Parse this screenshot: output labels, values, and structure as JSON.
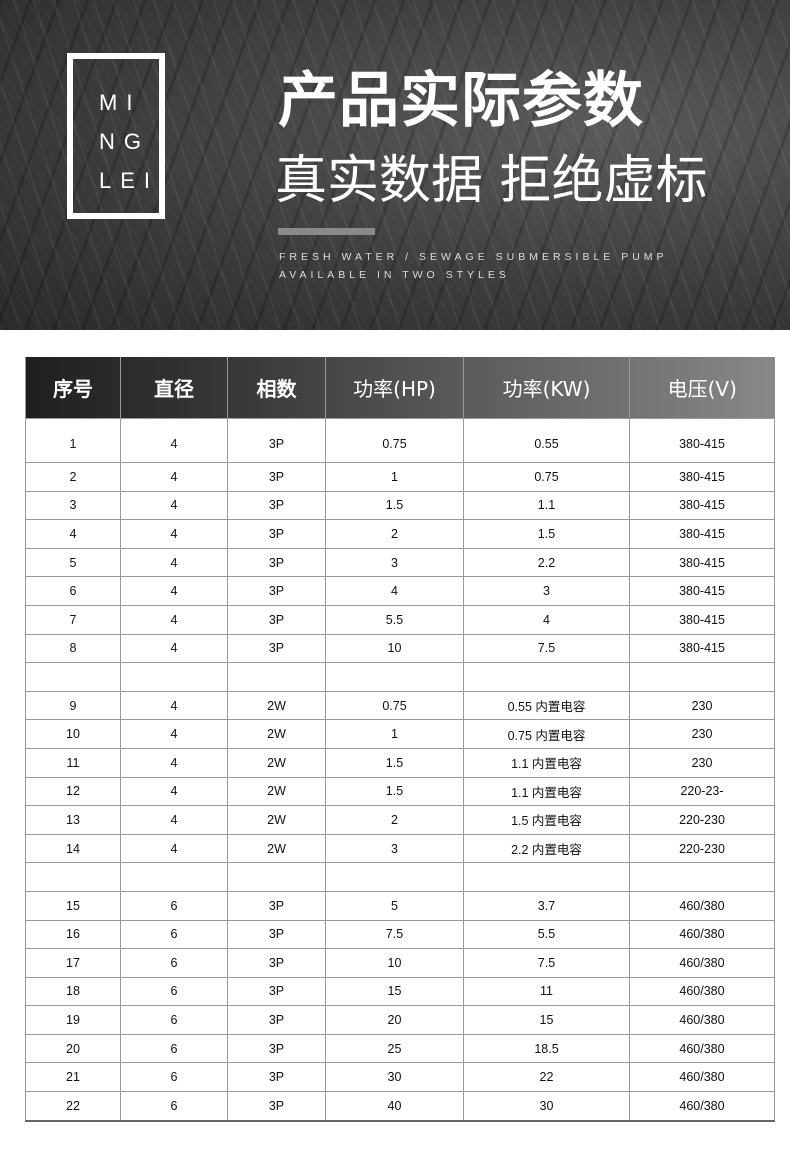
{
  "banner": {
    "logo_lines": [
      "MI",
      "NG",
      "LEI"
    ],
    "title": "产品实际参数",
    "subtitle": "真实数据 拒绝虚标",
    "tagline1": "FRESH WATER / SEWAGE SUBMERSIBLE PUMP",
    "tagline2": "AVAILABLE IN TWO STYLES"
  },
  "table": {
    "headers": [
      "序号",
      "直径",
      "相数",
      "功率(HP)",
      "功率(KW)",
      "电压(V)"
    ],
    "rows": [
      [
        "1",
        "4",
        "3P",
        "0.75",
        "0.55",
        "380-415"
      ],
      [
        "2",
        "4",
        "3P",
        "1",
        "0.75",
        "380-415"
      ],
      [
        "3",
        "4",
        "3P",
        "1.5",
        "1.1",
        "380-415"
      ],
      [
        "4",
        "4",
        "3P",
        "2",
        "1.5",
        "380-415"
      ],
      [
        "5",
        "4",
        "3P",
        "3",
        "2.2",
        "380-415"
      ],
      [
        "6",
        "4",
        "3P",
        "4",
        "3",
        "380-415"
      ],
      [
        "7",
        "4",
        "3P",
        "5.5",
        "4",
        "380-415"
      ],
      [
        "8",
        "4",
        "3P",
        "10",
        "7.5",
        "380-415"
      ],
      [
        "",
        "",
        "",
        "",
        "",
        ""
      ],
      [
        "9",
        "4",
        "2W",
        "0.75",
        "0.55 内置电容",
        "230"
      ],
      [
        "10",
        "4",
        "2W",
        "1",
        "0.75 内置电容",
        "230"
      ],
      [
        "11",
        "4",
        "2W",
        "1.5",
        "1.1 内置电容",
        "230"
      ],
      [
        "12",
        "4",
        "2W",
        "1.5",
        "1.1 内置电容",
        "220-23-"
      ],
      [
        "13",
        "4",
        "2W",
        "2",
        "1.5 内置电容",
        "220-230"
      ],
      [
        "14",
        "4",
        "2W",
        "3",
        "2.2 内置电容",
        "220-230"
      ],
      [
        "",
        "",
        "",
        "",
        "",
        ""
      ],
      [
        "15",
        "6",
        "3P",
        "5",
        "3.7",
        "460/380"
      ],
      [
        "16",
        "6",
        "3P",
        "7.5",
        "5.5",
        "460/380"
      ],
      [
        "17",
        "6",
        "3P",
        "10",
        "7.5",
        "460/380"
      ],
      [
        "18",
        "6",
        "3P",
        "15",
        "11",
        "460/380"
      ],
      [
        "19",
        "6",
        "3P",
        "20",
        "15",
        "460/380"
      ],
      [
        "20",
        "6",
        "3P",
        "25",
        "18.5",
        "460/380"
      ],
      [
        "21",
        "6",
        "3P",
        "30",
        "22",
        "460/380"
      ],
      [
        "22",
        "6",
        "3P",
        "40",
        "30",
        "460/380"
      ]
    ]
  }
}
